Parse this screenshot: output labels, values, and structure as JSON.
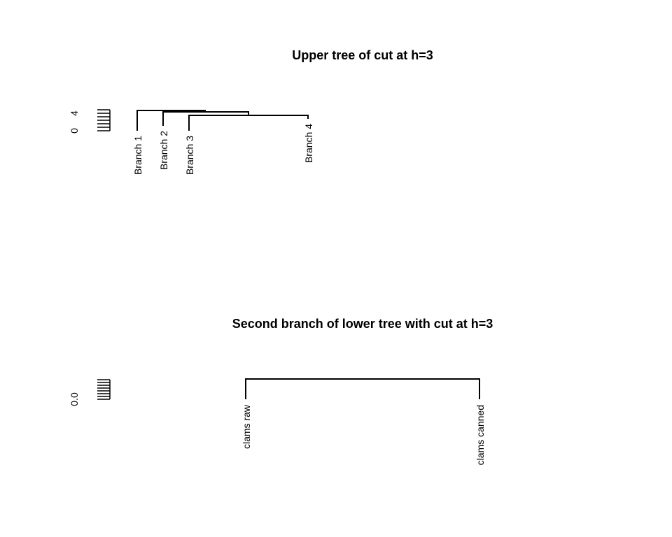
{
  "chart_data": [
    {
      "type": "dendrogram",
      "title": "Upper tree of cut at h=3",
      "y_tick_labels": [
        "0",
        "4"
      ],
      "leaves": [
        "Branch 1",
        "Branch 2",
        "Branch 3",
        "Branch 4"
      ],
      "merges": [
        {
          "left": "Branch 2",
          "right": "Branch 3",
          "height": 3.9
        },
        {
          "left": "Branch 1",
          "right": "merge-0",
          "height": 4.1
        },
        {
          "left": "merge-1",
          "right": "Branch 4",
          "height": 3.0
        }
      ]
    },
    {
      "type": "dendrogram",
      "title": "Second branch of lower tree with cut at h=3",
      "y_tick_labels": [
        "0.0"
      ],
      "leaves": [
        "clams raw",
        "clams canned"
      ],
      "merges": [
        {
          "left": "clams raw",
          "right": "clams canned",
          "height": 0.0
        }
      ]
    }
  ]
}
